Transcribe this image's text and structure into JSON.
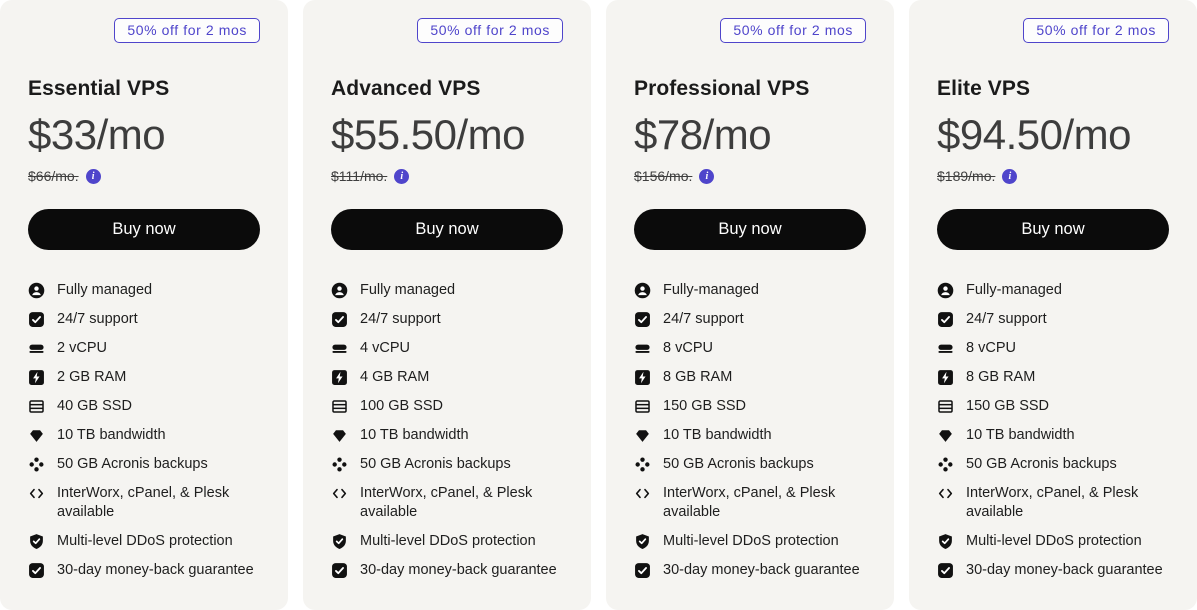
{
  "badge_label": "50% off for 2 mos",
  "buy_button_label": "Buy now",
  "info_icon_glyph": "i",
  "colors": {
    "accent_purple": "#4f45cb",
    "card_background": "#f5f4f1",
    "button_black": "#0b0b0b",
    "price_gray": "#3d3d3d"
  },
  "plans": [
    {
      "name": "Essential VPS",
      "price": "$33/mo",
      "old_price": "$66/mo.",
      "features": [
        {
          "icon": "user-circle",
          "text": "Fully managed"
        },
        {
          "icon": "check-square",
          "text": "24/7 support"
        },
        {
          "icon": "server-drive",
          "text": "2 vCPU"
        },
        {
          "icon": "bolt-square",
          "text": "2 GB RAM"
        },
        {
          "icon": "storage-rack",
          "text": "40 GB SSD"
        },
        {
          "icon": "gem",
          "text": "10 TB bandwidth"
        },
        {
          "icon": "dots-cluster",
          "text": "50 GB Acronis backups"
        },
        {
          "icon": "code-brackets",
          "text": "InterWorx, cPanel, & Plesk available"
        },
        {
          "icon": "shield-check",
          "text": "Multi-level DDoS protection"
        },
        {
          "icon": "check-square",
          "text": "30-day money-back guarantee"
        }
      ]
    },
    {
      "name": "Advanced VPS",
      "price": "$55.50/mo",
      "old_price": "$111/mo.",
      "features": [
        {
          "icon": "user-circle",
          "text": "Fully managed"
        },
        {
          "icon": "check-square",
          "text": "24/7 support"
        },
        {
          "icon": "server-drive",
          "text": "4 vCPU"
        },
        {
          "icon": "bolt-square",
          "text": "4 GB RAM"
        },
        {
          "icon": "storage-rack",
          "text": "100 GB SSD"
        },
        {
          "icon": "gem",
          "text": "10 TB bandwidth"
        },
        {
          "icon": "dots-cluster",
          "text": "50 GB Acronis backups"
        },
        {
          "icon": "code-brackets",
          "text": "InterWorx, cPanel, & Plesk available"
        },
        {
          "icon": "shield-check",
          "text": "Multi-level DDoS protection"
        },
        {
          "icon": "check-square",
          "text": "30-day money-back guarantee"
        }
      ]
    },
    {
      "name": "Professional VPS",
      "price": "$78/mo",
      "old_price": "$156/mo.",
      "features": [
        {
          "icon": "user-circle",
          "text": "Fully-managed"
        },
        {
          "icon": "check-square",
          "text": "24/7 support"
        },
        {
          "icon": "server-drive",
          "text": "8 vCPU"
        },
        {
          "icon": "bolt-square",
          "text": "8 GB RAM"
        },
        {
          "icon": "storage-rack",
          "text": "150 GB SSD"
        },
        {
          "icon": "gem",
          "text": "10 TB bandwidth"
        },
        {
          "icon": "dots-cluster",
          "text": "50 GB Acronis backups"
        },
        {
          "icon": "code-brackets",
          "text": "InterWorx, cPanel, & Plesk available"
        },
        {
          "icon": "shield-check",
          "text": "Multi-level DDoS protection"
        },
        {
          "icon": "check-square",
          "text": "30-day money-back guarantee"
        }
      ]
    },
    {
      "name": "Elite VPS",
      "price": "$94.50/mo",
      "old_price": "$189/mo.",
      "features": [
        {
          "icon": "user-circle",
          "text": "Fully-managed"
        },
        {
          "icon": "check-square",
          "text": "24/7 support"
        },
        {
          "icon": "server-drive",
          "text": "8 vCPU"
        },
        {
          "icon": "bolt-square",
          "text": "8 GB RAM"
        },
        {
          "icon": "storage-rack",
          "text": "150 GB SSD"
        },
        {
          "icon": "gem",
          "text": "10 TB bandwidth"
        },
        {
          "icon": "dots-cluster",
          "text": "50 GB Acronis backups"
        },
        {
          "icon": "code-brackets",
          "text": "InterWorx, cPanel, & Plesk available"
        },
        {
          "icon": "shield-check",
          "text": "Multi-level DDoS protection"
        },
        {
          "icon": "check-square",
          "text": "30-day money-back guarantee"
        }
      ]
    }
  ]
}
